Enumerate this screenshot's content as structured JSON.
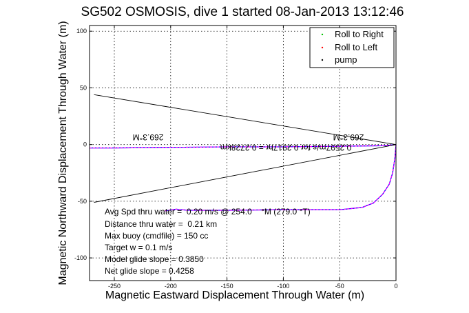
{
  "chart_data": {
    "type": "line",
    "title": "SG502 OSMOSIS, dive 1 started 08-Jan-2013 13:12:46",
    "xlabel": "Magnetic Eastward Displacement Through Water (m)",
    "ylabel": "Magnetic Northward Displacement Through Water (m)",
    "xlim": [
      -272,
      0
    ],
    "ylim": [
      -120,
      105
    ],
    "xticks": [
      -250,
      -200,
      -150,
      -100,
      -50,
      0
    ],
    "yticks": [
      100,
      50,
      0,
      -50,
      -100
    ],
    "grid": true,
    "legend_position": "top-right",
    "legend": [
      {
        "label": "Roll to Right",
        "color": "#00c000",
        "marker": "."
      },
      {
        "label": "Roll to Left",
        "color": "#ff0000",
        "marker": "."
      },
      {
        "label": "pump",
        "color": "#000000",
        "marker": "."
      }
    ],
    "series": [
      {
        "name": "track",
        "color": "#0000ff",
        "dashed_color": "#ff00ff",
        "x": [
          -272,
          -250,
          -200,
          -150,
          -100,
          -50,
          -10,
          0
        ],
        "y": [
          -3,
          -3,
          -2.5,
          -2,
          -2,
          -1.5,
          -1,
          0
        ]
      },
      {
        "name": "track",
        "color": "#0000ff",
        "dashed_color": "#ff00ff",
        "x": [
          -205,
          -195,
          -185,
          -150,
          -100,
          -50,
          -30,
          -20,
          -12,
          -6,
          -3,
          -1,
          0
        ],
        "y": [
          -58.5,
          -57,
          -58,
          -58,
          -57.5,
          -57.5,
          -55.5,
          -51.5,
          -44,
          -35,
          -25,
          -12,
          0
        ]
      },
      {
        "name": "heading line",
        "color": "#000000",
        "x": [
          -268,
          0
        ],
        "y": [
          44,
          0
        ]
      },
      {
        "name": "heading line",
        "color": "#000000",
        "x": [
          -268,
          0
        ],
        "y": [
          -51,
          0
        ]
      }
    ],
    "annotations": {
      "heading_left": "269.3°M",
      "heading_right": "269.3°M",
      "speed_line": "0.2597m/s for 0.2917hr = 0.2728km"
    },
    "stats": [
      "Avg Spd thru water =  0.20 m/s @ 254.0    °M (279.0 °T)",
      "Distance thru water =  0.21 km",
      "Max buoy (cmdfile) = 150 cc",
      "Target w = 0.1 m/s",
      "Model glide slope = 0.3850",
      "Net glide slope = 0.4258"
    ]
  }
}
